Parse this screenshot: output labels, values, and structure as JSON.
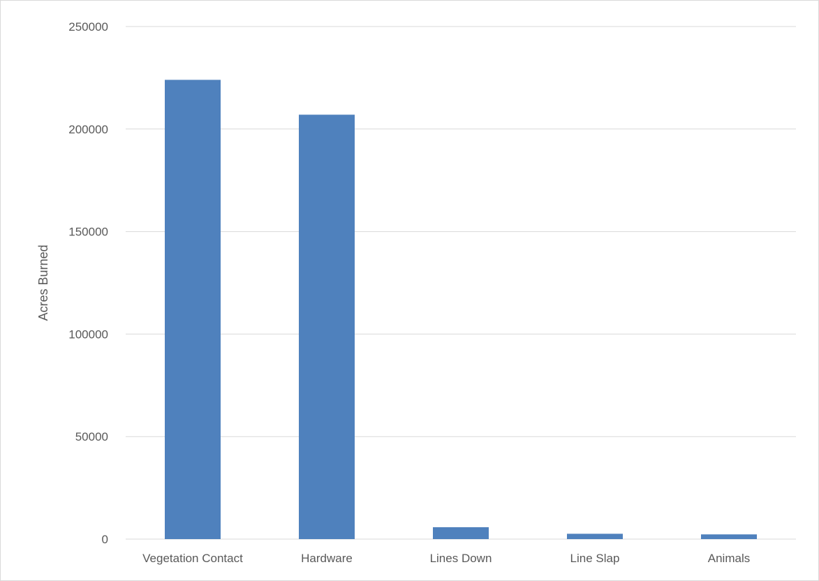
{
  "chart_data": {
    "type": "bar",
    "title": "",
    "xlabel": "",
    "ylabel": "Acres Burned",
    "categories": [
      "Vegetation Contact",
      "Hardware",
      "Lines Down",
      "Line Slap",
      "Animals"
    ],
    "values": [
      224000,
      207000,
      5800,
      2600,
      2300
    ],
    "ylim": [
      0,
      250000
    ],
    "yticks": [
      "0",
      "50000",
      "100000",
      "150000",
      "200000",
      "250000"
    ],
    "grid": true,
    "legend": "none",
    "bar_color": "#4f81bd",
    "gridline_color": "#d9d9d9"
  }
}
